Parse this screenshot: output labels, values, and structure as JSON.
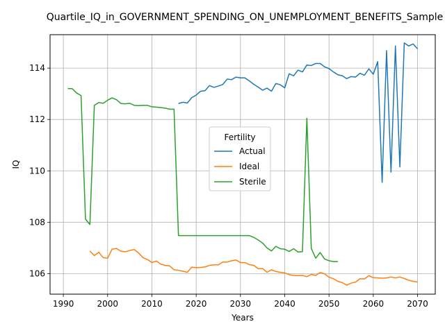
{
  "chart_data": {
    "type": "line",
    "title": "Quartile_IQ_in_GOVERNMENT_SPENDING_ON_UNEMPLOYMENT_BENEFITS_Sample",
    "xlabel": "Years",
    "ylabel": "IQ",
    "xlim": [
      1987,
      2074
    ],
    "ylim": [
      105.2,
      115.3
    ],
    "xticks": [
      1990,
      2000,
      2010,
      2020,
      2030,
      2040,
      2050,
      2060,
      2070
    ],
    "yticks": [
      106,
      108,
      110,
      112,
      114
    ],
    "grid": true,
    "legend": {
      "title": "Fertility",
      "placement": "center"
    },
    "series": [
      {
        "name": "Actual",
        "color": "#1f77b4",
        "points": [
          [
            2016,
            112.62
          ],
          [
            2017,
            112.67
          ],
          [
            2018,
            112.64
          ],
          [
            2019,
            112.85
          ],
          [
            2020,
            112.95
          ],
          [
            2021,
            113.1
          ],
          [
            2022,
            113.12
          ],
          [
            2023,
            113.32
          ],
          [
            2024,
            113.25
          ],
          [
            2025,
            113.3
          ],
          [
            2026,
            113.36
          ],
          [
            2027,
            113.57
          ],
          [
            2028,
            113.55
          ],
          [
            2029,
            113.65
          ],
          [
            2030,
            113.62
          ],
          [
            2031,
            113.62
          ],
          [
            2032,
            113.5
          ],
          [
            2033,
            113.37
          ],
          [
            2034,
            113.26
          ],
          [
            2035,
            113.14
          ],
          [
            2036,
            113.22
          ],
          [
            2037,
            113.1
          ],
          [
            2038,
            113.4
          ],
          [
            2039,
            113.35
          ],
          [
            2040,
            113.23
          ],
          [
            2041,
            113.78
          ],
          [
            2042,
            113.7
          ],
          [
            2043,
            113.92
          ],
          [
            2044,
            113.85
          ],
          [
            2045,
            114.12
          ],
          [
            2046,
            114.1
          ],
          [
            2047,
            114.18
          ],
          [
            2048,
            114.18
          ],
          [
            2049,
            114.05
          ],
          [
            2050,
            113.98
          ],
          [
            2051,
            113.85
          ],
          [
            2052,
            113.74
          ],
          [
            2053,
            113.7
          ],
          [
            2054,
            113.59
          ],
          [
            2055,
            113.67
          ],
          [
            2056,
            113.65
          ],
          [
            2057,
            113.8
          ],
          [
            2058,
            113.72
          ],
          [
            2059,
            113.97
          ],
          [
            2060,
            113.76
          ],
          [
            2061,
            114.25
          ],
          [
            2062,
            109.55
          ],
          [
            2063,
            114.68
          ],
          [
            2064,
            109.95
          ],
          [
            2065,
            114.86
          ],
          [
            2066,
            110.15
          ],
          [
            2067,
            114.98
          ],
          [
            2068,
            114.86
          ],
          [
            2069,
            114.94
          ],
          [
            2070,
            114.75
          ]
        ]
      },
      {
        "name": "Ideal",
        "color": "#ff7f0e",
        "points": [
          [
            1996,
            106.88
          ],
          [
            1997,
            106.7
          ],
          [
            1998,
            106.83
          ],
          [
            1999,
            106.62
          ],
          [
            2000,
            106.6
          ],
          [
            2001,
            106.95
          ],
          [
            2002,
            106.98
          ],
          [
            2003,
            106.87
          ],
          [
            2004,
            106.85
          ],
          [
            2005,
            106.9
          ],
          [
            2006,
            106.94
          ],
          [
            2007,
            106.8
          ],
          [
            2008,
            106.62
          ],
          [
            2009,
            106.55
          ],
          [
            2010,
            106.43
          ],
          [
            2011,
            106.49
          ],
          [
            2012,
            106.37
          ],
          [
            2013,
            106.32
          ],
          [
            2014,
            106.3
          ],
          [
            2015,
            106.15
          ],
          [
            2016,
            106.13
          ],
          [
            2017,
            106.09
          ],
          [
            2018,
            106.05
          ],
          [
            2019,
            106.25
          ],
          [
            2020,
            106.23
          ],
          [
            2021,
            106.24
          ],
          [
            2022,
            106.26
          ],
          [
            2023,
            106.32
          ],
          [
            2024,
            106.34
          ],
          [
            2025,
            106.34
          ],
          [
            2026,
            106.45
          ],
          [
            2027,
            106.45
          ],
          [
            2028,
            106.5
          ],
          [
            2029,
            106.53
          ],
          [
            2030,
            106.43
          ],
          [
            2031,
            106.43
          ],
          [
            2032,
            106.35
          ],
          [
            2033,
            106.32
          ],
          [
            2034,
            106.19
          ],
          [
            2035,
            106.2
          ],
          [
            2036,
            106.05
          ],
          [
            2037,
            106.15
          ],
          [
            2038,
            106.08
          ],
          [
            2039,
            106.05
          ],
          [
            2040,
            106.03
          ],
          [
            2041,
            105.96
          ],
          [
            2042,
            105.93
          ],
          [
            2043,
            105.92
          ],
          [
            2044,
            105.93
          ],
          [
            2045,
            105.88
          ],
          [
            2046,
            105.97
          ],
          [
            2047,
            105.93
          ],
          [
            2048,
            106.04
          ],
          [
            2049,
            105.99
          ],
          [
            2050,
            105.86
          ],
          [
            2051,
            105.8
          ],
          [
            2052,
            105.7
          ],
          [
            2053,
            105.65
          ],
          [
            2054,
            105.55
          ],
          [
            2055,
            105.63
          ],
          [
            2056,
            105.67
          ],
          [
            2057,
            105.8
          ],
          [
            2058,
            105.79
          ],
          [
            2059,
            105.92
          ],
          [
            2060,
            105.84
          ],
          [
            2061,
            105.83
          ],
          [
            2062,
            105.82
          ],
          [
            2063,
            105.83
          ],
          [
            2064,
            105.87
          ],
          [
            2065,
            105.83
          ],
          [
            2066,
            105.87
          ],
          [
            2067,
            105.81
          ],
          [
            2068,
            105.74
          ],
          [
            2069,
            105.7
          ],
          [
            2070,
            105.67
          ]
        ]
      },
      {
        "name": "Sterile",
        "color": "#2ca02c",
        "points": [
          [
            1991,
            113.2
          ],
          [
            1992,
            113.2
          ],
          [
            1993,
            113.03
          ],
          [
            1994,
            112.93
          ],
          [
            1995,
            108.12
          ],
          [
            1996,
            107.91
          ],
          [
            1997,
            112.55
          ],
          [
            1998,
            112.66
          ],
          [
            1999,
            112.63
          ],
          [
            2000,
            112.75
          ],
          [
            2001,
            112.84
          ],
          [
            2002,
            112.77
          ],
          [
            2003,
            112.62
          ],
          [
            2004,
            112.61
          ],
          [
            2005,
            112.63
          ],
          [
            2006,
            112.55
          ],
          [
            2007,
            112.54
          ],
          [
            2008,
            112.55
          ],
          [
            2009,
            112.55
          ],
          [
            2010,
            112.49
          ],
          [
            2011,
            112.48
          ],
          [
            2012,
            112.46
          ],
          [
            2013,
            112.44
          ],
          [
            2014,
            112.4
          ],
          [
            2015,
            112.4
          ],
          [
            2016,
            107.48
          ],
          [
            2020,
            107.48
          ],
          [
            2025,
            107.48
          ],
          [
            2030,
            107.48
          ],
          [
            2031,
            107.48
          ],
          [
            2032,
            107.48
          ],
          [
            2033,
            107.41
          ],
          [
            2034,
            107.31
          ],
          [
            2035,
            107.19
          ],
          [
            2036,
            107.0
          ],
          [
            2037,
            106.88
          ],
          [
            2038,
            107.06
          ],
          [
            2039,
            106.97
          ],
          [
            2040,
            106.95
          ],
          [
            2041,
            106.86
          ],
          [
            2042,
            106.97
          ],
          [
            2043,
            106.84
          ],
          [
            2044,
            106.85
          ],
          [
            2045,
            112.05
          ],
          [
            2046,
            106.98
          ],
          [
            2047,
            106.6
          ],
          [
            2048,
            106.82
          ],
          [
            2049,
            106.57
          ],
          [
            2050,
            106.5
          ],
          [
            2051,
            106.47
          ],
          [
            2052,
            106.47
          ]
        ]
      }
    ]
  }
}
